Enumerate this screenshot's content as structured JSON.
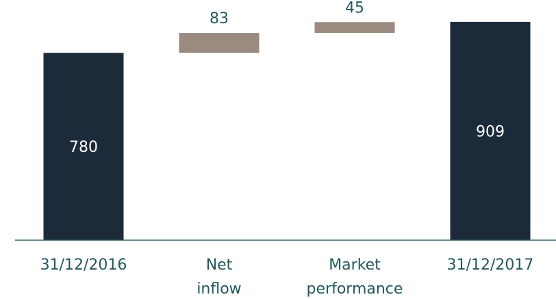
{
  "chart_data": {
    "type": "bar",
    "subtype": "waterfall",
    "categories": [
      [
        "31/12/2016"
      ],
      [
        "Net",
        "inflow"
      ],
      [
        "Market",
        "performance"
      ],
      [
        "31/12/2017"
      ]
    ],
    "values": [
      780,
      83,
      45,
      909
    ],
    "kinds": [
      "total",
      "delta",
      "delta",
      "total"
    ],
    "labels": [
      "780",
      "83",
      "45",
      "909"
    ],
    "ylim": [
      0,
      1000
    ],
    "grid": false,
    "legend": "none",
    "colors": {
      "total": "#1c2b3a",
      "delta": "#9b8a80",
      "axis": "#2f6b6b",
      "text": "#1f5a5c",
      "inside_text": "#ffffff"
    }
  }
}
